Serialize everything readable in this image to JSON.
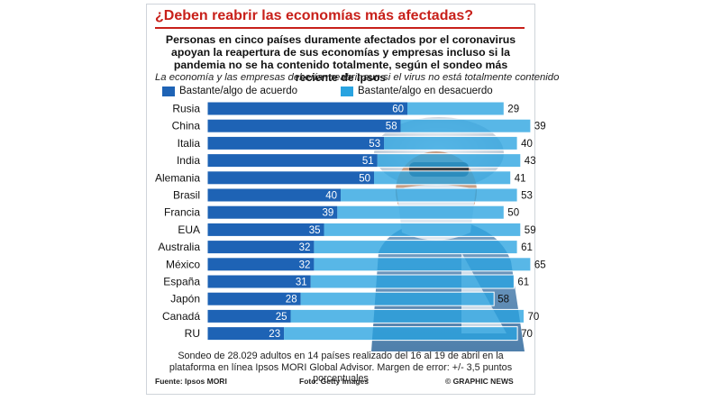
{
  "headline": "¿Deben reabrir las economías más afectadas?",
  "subtitle": "Personas en cinco países duramente afectados por el coronavirus apoyan la reapertura de sus economías y empresas incluso si la pandemia no se ha contenido totalmente, según el sondeo más reciente de Ipsos",
  "footnote": "Sondeo de 28.029 adultos en 14 países realizado del 16 al 19 de abril en la plataforma en línea Ipsos MORI Global Advisor. Margen de error: +/- 3,5 puntos porcentuales",
  "credits": {
    "source": "Fuente: Ipsos MORI",
    "photo": "Foto: Getty Images",
    "agency": "© GRAPHIC NEWS"
  },
  "colors": {
    "headline": "#c8201a",
    "agree": "#1e63b5",
    "disagree": "#29a3e0"
  },
  "chart_data": {
    "type": "bar",
    "orientation": "horizontal",
    "stacked": true,
    "title": "La economía y las empresas deberían reabrir aun si el virus no está totalmente contenido",
    "categories": [
      "Rusia",
      "China",
      "Italia",
      "India",
      "Alemania",
      "Brasil",
      "Francia",
      "EUA",
      "Australia",
      "México",
      "España",
      "Japón",
      "Canadá",
      "RU"
    ],
    "series": [
      {
        "name": "Bastante/algo de acuerdo",
        "values": [
          60,
          58,
          53,
          51,
          50,
          40,
          39,
          35,
          32,
          32,
          31,
          28,
          25,
          23
        ]
      },
      {
        "name": "Bastante/algo en desacuerdo",
        "values": [
          29,
          39,
          40,
          43,
          41,
          53,
          50,
          59,
          61,
          65,
          61,
          58,
          70,
          70
        ]
      }
    ],
    "value_labels": true,
    "legend_position": "top",
    "grid": false,
    "xlim": [
      0,
      100
    ]
  }
}
